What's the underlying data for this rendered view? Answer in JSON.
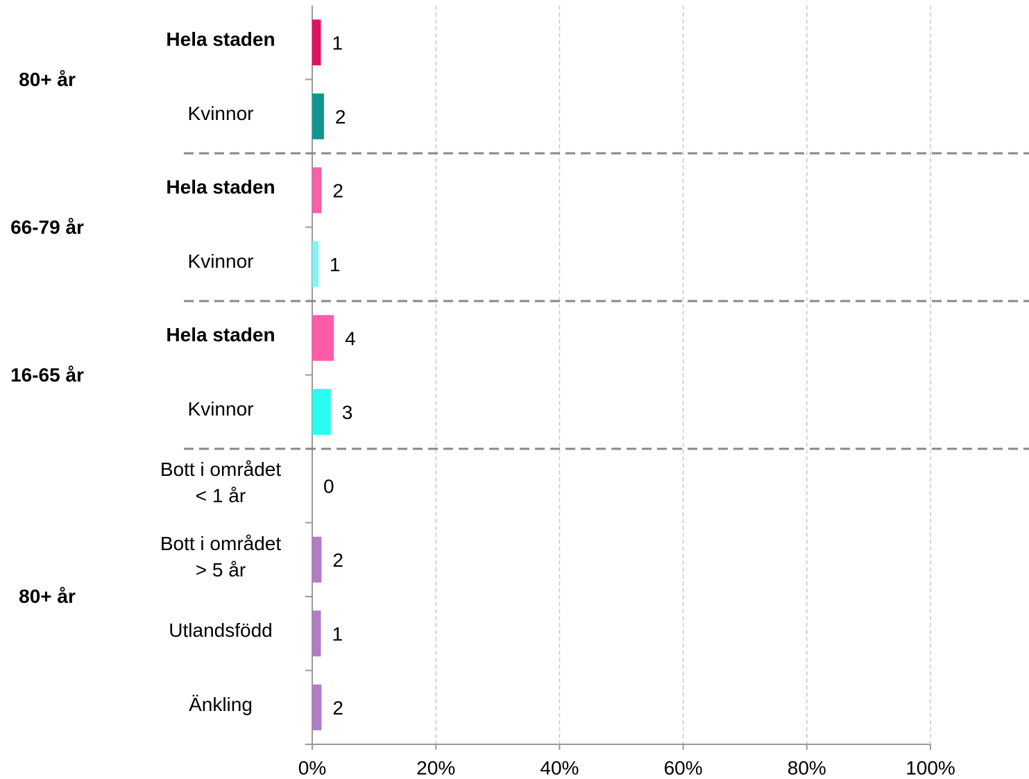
{
  "chart_data": {
    "type": "bar",
    "orientation": "horizontal",
    "groups": [
      {
        "label": "80+ år",
        "categories": [
          "Hela staden",
          "Kvinnor"
        ],
        "bold": [
          true,
          false
        ],
        "values": [
          1.4,
          1.9
        ],
        "value_labels": [
          "1",
          "2"
        ],
        "colors": [
          "#e0115f",
          "#10968e"
        ]
      },
      {
        "label": "66-79 år",
        "categories": [
          "Hela staden",
          "Kvinnor"
        ],
        "bold": [
          true,
          false
        ],
        "values": [
          1.5,
          1.0
        ],
        "value_labels": [
          "2",
          "1"
        ],
        "colors": [
          "#f75fa8",
          "#7ff5f5"
        ]
      },
      {
        "label": "16-65 år",
        "categories": [
          "Hela staden",
          "Kvinnor"
        ],
        "bold": [
          true,
          false
        ],
        "values": [
          3.5,
          3.0
        ],
        "value_labels": [
          "4",
          "3"
        ],
        "colors": [
          "#ff5ca8",
          "#29fcee"
        ]
      },
      {
        "label": "80+ år",
        "categories": [
          "Bott i området\n< 1 år",
          "Bott i området\n> 5 år",
          "Utlandsfödd",
          "Änkling"
        ],
        "bold": [
          false,
          false,
          false,
          false
        ],
        "values": [
          0,
          1.5,
          1.4,
          1.5
        ],
        "value_labels": [
          "0",
          "2",
          "1",
          "2"
        ],
        "colors": [
          "#b07cc6",
          "#b07cc6",
          "#b07cc6",
          "#b07cc6"
        ]
      }
    ],
    "xlim": [
      0,
      100
    ],
    "xticks": [
      {
        "value": 0,
        "label": "0%"
      },
      {
        "value": 20,
        "label": "20%"
      },
      {
        "value": 40,
        "label": "40%"
      },
      {
        "value": 60,
        "label": "60%"
      },
      {
        "value": 80,
        "label": "80%"
      },
      {
        "value": 100,
        "label": "100%"
      }
    ],
    "grid": true
  }
}
